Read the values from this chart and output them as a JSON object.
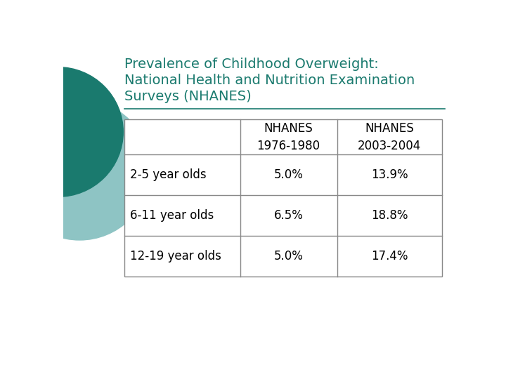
{
  "title_line1": "Prevalence of Childhood Overweight:",
  "title_line2": "National Health and Nutrition Examination",
  "title_line3": "Surveys (NHANES)",
  "title_color": "#1a7a6e",
  "background_color": "#ffffff",
  "circle_color_outer": "#8ec4c4",
  "circle_color_inner": "#1a7a6e",
  "table_col_headers": [
    "",
    "NHANES\n1976-1980",
    "NHANES\n2003-2004"
  ],
  "table_rows": [
    [
      "2-5 year olds",
      "5.0%",
      "13.9%"
    ],
    [
      "6-11 year olds",
      "6.5%",
      "18.8%"
    ],
    [
      "12-19 year olds",
      "5.0%",
      "17.4%"
    ]
  ],
  "table_text_color": "#000000",
  "table_border_color": "#888888",
  "font_size_title": 14,
  "font_size_table": 12
}
